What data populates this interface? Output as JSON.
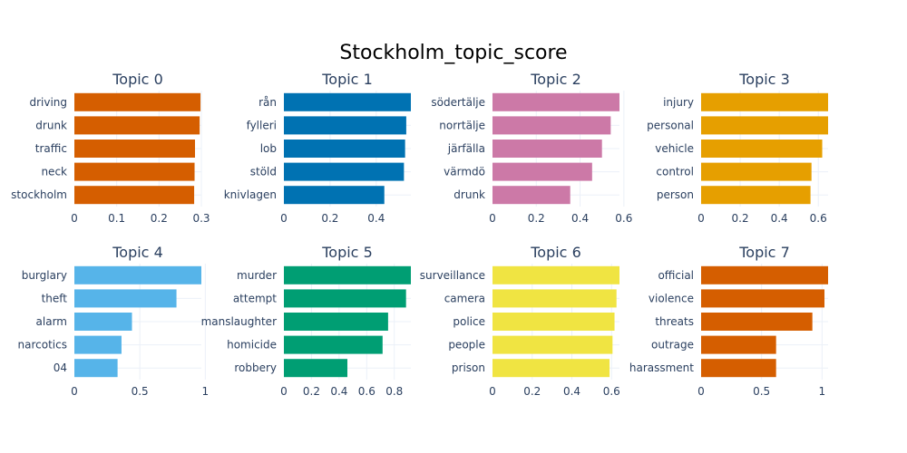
{
  "chart_data": {
    "type": "bar",
    "orientation": "horizontal",
    "title": "Stockholm_topic_score",
    "grid": true,
    "panels": [
      {
        "title": "Topic 0",
        "color": "#D55E00",
        "categories": [
          "driving",
          "drunk",
          "traffic",
          "neck",
          "stockholm"
        ],
        "values": [
          0.298,
          0.296,
          0.285,
          0.284,
          0.283
        ],
        "xlim": [
          0,
          0.3
        ],
        "ticks": [
          {
            "v": 0,
            "label": "0"
          },
          {
            "v": 0.1,
            "label": "0.1"
          },
          {
            "v": 0.2,
            "label": "0.2"
          },
          {
            "v": 0.3,
            "label": "0.3"
          }
        ]
      },
      {
        "title": "Topic 1",
        "color": "#0072B2",
        "categories": [
          "rån",
          "fylleri",
          "lob",
          "stöld",
          "knivlagen"
        ],
        "values": [
          0.55,
          0.53,
          0.525,
          0.52,
          0.435
        ],
        "xlim": [
          0,
          0.55
        ],
        "ticks": [
          {
            "v": 0,
            "label": "0"
          },
          {
            "v": 0.2,
            "label": "0.2"
          },
          {
            "v": 0.4,
            "label": "0.4"
          }
        ]
      },
      {
        "title": "Topic 2",
        "color": "#CC79A7",
        "categories": [
          "södertälje",
          "norrtälje",
          "järfälla",
          "värmdö",
          "drunk"
        ],
        "values": [
          0.58,
          0.54,
          0.5,
          0.455,
          0.355
        ],
        "xlim": [
          0,
          0.58
        ],
        "ticks": [
          {
            "v": 0,
            "label": "0"
          },
          {
            "v": 0.2,
            "label": "0.2"
          },
          {
            "v": 0.4,
            "label": "0.4"
          },
          {
            "v": 0.6,
            "label": "0.6"
          }
        ]
      },
      {
        "title": "Topic 3",
        "color": "#E69F00",
        "categories": [
          "injury",
          "personal",
          "vehicle",
          "control",
          "person"
        ],
        "values": [
          0.65,
          0.65,
          0.62,
          0.565,
          0.56
        ],
        "xlim": [
          0,
          0.65
        ],
        "ticks": [
          {
            "v": 0,
            "label": "0"
          },
          {
            "v": 0.2,
            "label": "0.2"
          },
          {
            "v": 0.4,
            "label": "0.4"
          },
          {
            "v": 0.6,
            "label": "0.6"
          }
        ]
      },
      {
        "title": "Topic 4",
        "color": "#56B4E9",
        "categories": [
          "burglary",
          "theft",
          "alarm",
          "narcotics",
          "04"
        ],
        "values": [
          0.97,
          0.78,
          0.44,
          0.36,
          0.33
        ],
        "xlim": [
          0,
          0.97
        ],
        "ticks": [
          {
            "v": 0,
            "label": "0"
          },
          {
            "v": 0.5,
            "label": "0.5"
          },
          {
            "v": 1,
            "label": "1"
          }
        ]
      },
      {
        "title": "Topic 5",
        "color": "#009E73",
        "categories": [
          "murder",
          "attempt",
          "manslaughter",
          "homicide",
          "robbery"
        ],
        "values": [
          0.92,
          0.885,
          0.755,
          0.715,
          0.46
        ],
        "xlim": [
          0,
          0.92
        ],
        "ticks": [
          {
            "v": 0,
            "label": "0"
          },
          {
            "v": 0.2,
            "label": "0.2"
          },
          {
            "v": 0.4,
            "label": "0.4"
          },
          {
            "v": 0.6,
            "label": "0.6"
          },
          {
            "v": 0.8,
            "label": "0.8"
          }
        ]
      },
      {
        "title": "Topic 6",
        "color": "#F0E442",
        "categories": [
          "surveillance",
          "camera",
          "police",
          "people",
          "prison"
        ],
        "values": [
          0.64,
          0.625,
          0.615,
          0.605,
          0.59
        ],
        "xlim": [
          0,
          0.64
        ],
        "ticks": [
          {
            "v": 0,
            "label": "0"
          },
          {
            "v": 0.2,
            "label": "0.2"
          },
          {
            "v": 0.4,
            "label": "0.4"
          },
          {
            "v": 0.6,
            "label": "0.6"
          }
        ]
      },
      {
        "title": "Topic 7",
        "color": "#D55E00",
        "categories": [
          "official",
          "violence",
          "threats",
          "outrage",
          "harassment"
        ],
        "values": [
          1.05,
          1.02,
          0.92,
          0.62,
          0.62
        ],
        "xlim": [
          0,
          1.05
        ],
        "ticks": [
          {
            "v": 0,
            "label": "0"
          },
          {
            "v": 0.5,
            "label": "0.5"
          },
          {
            "v": 1,
            "label": "1"
          }
        ]
      }
    ]
  }
}
